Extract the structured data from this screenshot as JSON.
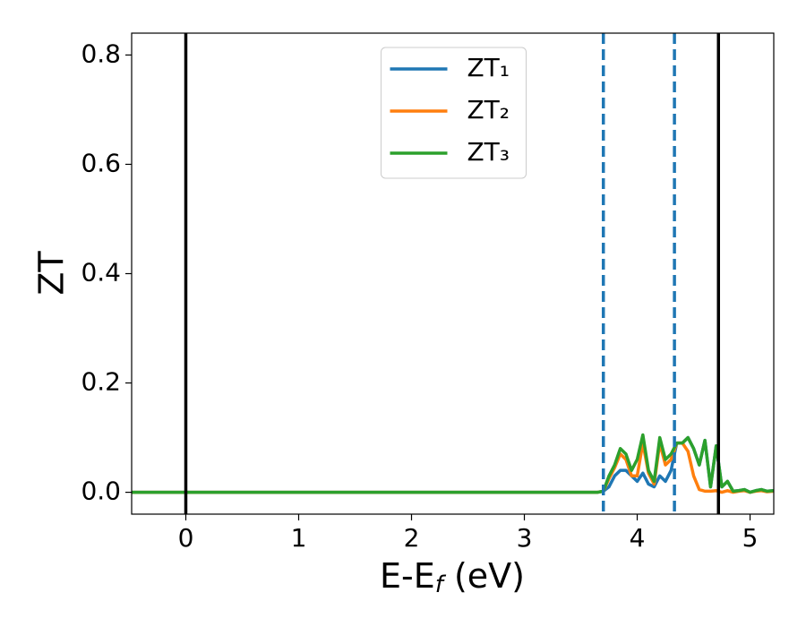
{
  "chart_data": {
    "type": "line",
    "xlabel": {
      "text": "E-E",
      "subscript": "f",
      "suffix": " (eV)"
    },
    "ylabel": "ZT",
    "x": [
      -0.48,
      3.65,
      3.7,
      3.75,
      3.8,
      3.85,
      3.9,
      3.95,
      4.0,
      4.05,
      4.1,
      4.15,
      4.2,
      4.25,
      4.3,
      4.35,
      4.4,
      4.45,
      4.5,
      4.55,
      4.6,
      4.65,
      4.7,
      4.75,
      4.8,
      4.85,
      4.9,
      4.95,
      5.0,
      5.05,
      5.1,
      5.15,
      5.21
    ],
    "series": [
      {
        "name": "ZT₁",
        "color": "#1f77b4",
        "values": [
          0,
          0,
          0.002,
          0.01,
          0.03,
          0.04,
          0.04,
          0.03,
          0.02,
          0.035,
          0.015,
          0.01,
          0.03,
          0.02,
          0.04,
          0.09,
          0.09,
          0.1,
          0.08,
          0.05,
          0.095,
          0.01,
          0.085,
          0.01,
          0.02,
          0.002,
          0.003,
          0.005,
          0,
          0.003,
          0.005,
          0.002,
          0.003
        ]
      },
      {
        "name": "ZT₂",
        "color": "#ff7f0e",
        "values": [
          0,
          0,
          0.002,
          0.025,
          0.045,
          0.07,
          0.06,
          0.03,
          0.03,
          0.09,
          0.035,
          0.015,
          0.09,
          0.05,
          0.06,
          0.09,
          0.09,
          0.075,
          0.03,
          0.005,
          0.002,
          0.002,
          0.003,
          0,
          0.003,
          0,
          0.002,
          0.003,
          0,
          0.002,
          0.003,
          0.001,
          0.002
        ]
      },
      {
        "name": "ZT₃",
        "color": "#2ca02c",
        "values": [
          0,
          0,
          0.002,
          0.03,
          0.05,
          0.08,
          0.07,
          0.04,
          0.06,
          0.105,
          0.04,
          0.02,
          0.1,
          0.06,
          0.07,
          0.09,
          0.09,
          0.1,
          0.08,
          0.05,
          0.095,
          0.01,
          0.085,
          0.01,
          0.02,
          0.002,
          0.003,
          0.005,
          0,
          0.003,
          0.005,
          0.002,
          0.003
        ]
      }
    ],
    "vlines": [
      {
        "x": 0,
        "color": "#000000",
        "style": "solid"
      },
      {
        "x": 4.72,
        "color": "#000000",
        "style": "solid"
      },
      {
        "x": 3.7,
        "color": "#1f77b4",
        "style": "dashed"
      },
      {
        "x": 4.33,
        "color": "#1f77b4",
        "style": "dashed"
      }
    ],
    "xlim": [
      -0.48,
      5.21
    ],
    "ylim": [
      -0.04,
      0.84
    ],
    "xticks": [
      0,
      1,
      2,
      3,
      4,
      5
    ],
    "yticks": [
      {
        "value": 0,
        "label": "0.0"
      },
      {
        "value": 0.2,
        "label": "0.2"
      },
      {
        "value": 0.4,
        "label": "0.4"
      },
      {
        "value": 0.6,
        "label": "0.6"
      },
      {
        "value": 0.8,
        "label": "0.8"
      }
    ],
    "legend": "upper center"
  }
}
